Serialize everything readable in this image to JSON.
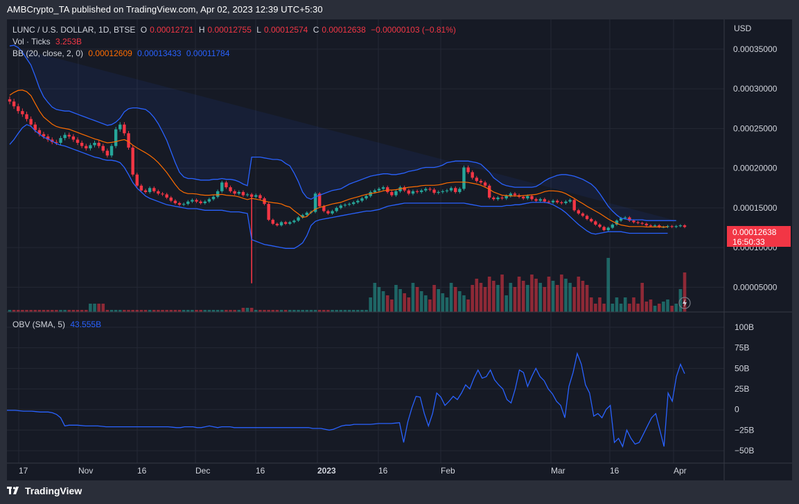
{
  "publisher_line": "AMBCrypto_TA published on TradingView.com, Apr 02, 2023 12:39 UTC+5:30",
  "legend": {
    "symbol": "LUNC / U.S. DOLLAR, 1D, BTSE",
    "o_label": "O",
    "o_val": "0.00012721",
    "h_label": "H",
    "h_val": "0.00012755",
    "l_label": "L",
    "l_val": "0.00012574",
    "c_label": "C",
    "c_val": "0.00012638",
    "change": "−0.00000103 (−0.81%)",
    "vol_label": "Vol · Ticks",
    "vol_val": "3.253B",
    "bb_label": "BB (20, close, 2, 0)",
    "bb_mid": "0.00012609",
    "bb_upper": "0.00013433",
    "bb_lower": "0.00011784",
    "obv_label": "OBV (SMA, 5)",
    "obv_val": "43.555B"
  },
  "currency": "USD",
  "price_tag": {
    "price": "0.00012638",
    "countdown": "16:50:33"
  },
  "footer_brand": "TradingView",
  "colors": {
    "up": "#26a69a",
    "down": "#f23645",
    "bb_mid": "#ff6d00",
    "bb_band": "#2962ff",
    "obv": "#2962ff"
  },
  "icons": {
    "brand": "tradingview-logo-icon",
    "replay": "lightning-icon"
  },
  "chart_data": [
    {
      "type": "candlestick",
      "title": "LUNC / U.S. DOLLAR, 1D, BTSE",
      "y_axis_ticks": [
        "0.00035000",
        "0.00030000",
        "0.00025000",
        "0.00020000",
        "0.00015000",
        "0.00010000",
        "0.00005000"
      ],
      "x_axis_ticks": [
        "17",
        "Nov",
        "16",
        "Dec",
        "16",
        "2023",
        "16",
        "Feb",
        "Mar",
        "16",
        "Apr"
      ],
      "ylim": [
        2.5e-05,
        0.00037
      ],
      "x_range_days": [
        -10,
        172
      ],
      "series": [
        {
          "name": "Price",
          "close": [
            0.000284,
            0.000278,
            0.000272,
            0.000268,
            0.000262,
            0.000255,
            0.000248,
            0.000243,
            0.00024,
            0.000236,
            0.000233,
            0.000232,
            0.000238,
            0.000242,
            0.00024,
            0.000236,
            0.000232,
            0.000228,
            0.000225,
            0.000229,
            0.000232,
            0.000228,
            0.000222,
            0.000216,
            0.000228,
            0.000249,
            0.000255,
            0.000244,
            0.000226,
            0.000192,
            0.000178,
            0.000172,
            0.00017,
            0.000175,
            0.000171,
            0.000168,
            0.000167,
            0.000163,
            0.000159,
            0.000156,
            0.000154,
            0.000155,
            0.000158,
            0.00016,
            0.000158,
            0.000156,
            0.000158,
            0.000161,
            0.000164,
            0.000171,
            0.000182,
            0.000176,
            0.000171,
            0.000168,
            0.00017,
            0.000166,
            0.000167,
            0.000164,
            0.000166,
            0.000162,
            0.000155,
            0.000135,
            0.00013,
            0.000128,
            0.000132,
            0.00013,
            0.000132,
            0.000134,
            0.000138,
            0.000141,
            0.000144,
            0.000145,
            0.000168,
            0.000152,
            0.000146,
            0.000143,
            0.000146,
            0.00015,
            0.000153,
            0.000154,
            0.000155,
            0.000157,
            0.000159,
            0.000162,
            0.000165,
            0.00017,
            0.000172,
            0.000174,
            0.000176,
            0.00017,
            0.000166,
            0.000171,
            0.000176,
            0.000172,
            0.000168,
            0.000171,
            0.00017,
            0.000172,
            0.000174,
            0.000173,
            0.000169,
            0.00017,
            0.000171,
            0.000172,
            0.000175,
            0.00017,
            0.000174,
            0.000201,
            0.000195,
            0.000188,
            0.000184,
            0.000182,
            0.000178,
            0.000163,
            0.000161,
            0.000163,
            0.000162,
            0.000165,
            0.000168,
            0.000166,
            0.000164,
            0.000162,
            0.000165,
            0.000161,
            0.000159,
            0.000161,
            0.000158,
            0.000157,
            0.000159,
            0.000157,
            0.000156,
            0.000158,
            0.00016,
            0.000147,
            0.000143,
            0.00014,
            0.000136,
            0.000133,
            0.000129,
            0.000126,
            0.000122,
            0.000125,
            0.000129,
            0.000134,
            0.000137,
            0.000138,
            0.000134,
            0.000132,
            0.000131,
            0.00013,
            0.000128,
            0.000127,
            0.000128,
            0.000126,
            0.000126,
            0.000127,
            0.000126,
            0.000127,
            0.000128,
            0.000126
          ],
          "open_offset_note": ""
        },
        {
          "name": "BB upper",
          "values": [
            0.000354,
            0.000355,
            0.000352,
            0.000346,
            0.000338,
            0.00033,
            0.000316,
            0.000301,
            0.00029,
            0.000283,
            0.000277,
            0.000274,
            0.000273,
            0.000272,
            0.000272,
            0.00027,
            0.000268,
            0.000266,
            0.000264,
            0.000262,
            0.00026,
            0.000258,
            0.000256,
            0.000254,
            0.000255,
            0.000258,
            0.000263,
            0.000271,
            0.000275,
            0.000276,
            0.000276,
            0.000275,
            0.000274,
            0.00027,
            0.000264,
            0.000256,
            0.000246,
            0.000235,
            0.000221,
            0.000207,
            0.000195,
            0.000189,
            0.000187,
            0.000187,
            0.000186,
            0.000185,
            0.000185,
            0.000185,
            0.000186,
            0.000186,
            0.000187,
            0.000186,
            0.000186,
            0.000185,
            0.000183,
            0.00018,
            0.000178,
            0.000214,
            0.000214,
            0.000214,
            0.000213,
            0.000212,
            0.000211,
            0.000211,
            0.00021,
            0.000206,
            0.000203,
            0.000194,
            0.000183,
            0.00017,
            0.000163,
            0.000161,
            0.000164,
            0.000166,
            0.000168,
            0.00017,
            0.000172,
            0.000173,
            0.000174,
            0.000177,
            0.00018,
            0.000182,
            0.000184,
            0.000186,
            0.000188,
            0.00019,
            0.000191,
            0.000192,
            0.000193,
            0.000193,
            0.000192,
            0.000192,
            0.000193,
            0.000194,
            0.000196,
            0.000197,
            0.000198,
            0.0002,
            0.000201,
            0.000201,
            0.000201,
            0.000202,
            0.000204,
            0.000207,
            0.000208,
            0.000209,
            0.000209,
            0.000209,
            0.000209,
            0.000208,
            0.000207,
            0.000205,
            0.0002,
            0.000195,
            0.000188,
            0.000184,
            0.00018,
            0.000178,
            0.000177,
            0.000176,
            0.000176,
            0.000176,
            0.000176,
            0.000176,
            0.000177,
            0.00018,
            0.000184,
            0.000187,
            0.000189,
            0.000191,
            0.000192,
            0.000192,
            0.000191,
            0.00019,
            0.000188,
            0.000186,
            0.000183,
            0.00018,
            0.000175,
            0.000168,
            0.00016,
            0.000152,
            0.000146,
            0.000141,
            0.000137,
            0.000136,
            0.000135,
            0.000135,
            0.000135,
            0.000135,
            0.000134,
            0.000134,
            0.000134,
            0.000134,
            0.000134,
            0.000134,
            0.000134,
            0.000134
          ]
        },
        {
          "name": "BB lower",
          "values": [
            0.00023,
            0.000236,
            0.000244,
            0.000251,
            0.000255,
            0.000253,
            0.000247,
            0.000243,
            0.000239,
            0.000237,
            0.000234,
            0.000231,
            0.000229,
            0.000228,
            0.000226,
            0.000224,
            0.000222,
            0.00022,
            0.000218,
            0.000216,
            0.000214,
            0.000213,
            0.000211,
            0.00021,
            0.00021,
            0.000209,
            0.000207,
            0.000201,
            0.000192,
            0.000182,
            0.000175,
            0.00017,
            0.000165,
            0.000162,
            0.00016,
            0.000158,
            0.000156,
            0.000154,
            0.000153,
            0.000152,
            0.000151,
            0.00015,
            0.000149,
            0.000149,
            0.000149,
            0.000148,
            0.000147,
            0.000147,
            0.000147,
            0.000147,
            0.000147,
            0.000146,
            0.000145,
            0.000145,
            0.000145,
            0.000144,
            0.000143,
            0.00011,
            0.000108,
            0.000106,
            0.000104,
            0.000103,
            0.000102,
            0.000101,
            0.0001,
            9.9e-05,
            9.9e-05,
            9.9e-05,
            0.000102,
            0.000106,
            0.000115,
            0.000128,
            0.000133,
            0.000135,
            0.000136,
            0.000137,
            0.000138,
            0.000139,
            0.00014,
            0.000141,
            0.000142,
            0.000143,
            0.000144,
            0.000145,
            0.000146,
            0.000146,
            0.000147,
            0.000148,
            0.00015,
            0.000152,
            0.000153,
            0.000154,
            0.000155,
            0.000156,
            0.000156,
            0.000156,
            0.000156,
            0.000156,
            0.000156,
            0.000156,
            0.000156,
            0.000156,
            0.000156,
            0.000156,
            0.000156,
            0.000156,
            0.000156,
            0.000156,
            0.000155,
            0.000154,
            0.000153,
            0.000152,
            0.000152,
            0.000152,
            0.000152,
            0.000152,
            0.000152,
            0.000153,
            0.000153,
            0.000154,
            0.000154,
            0.000155,
            0.000156,
            0.000157,
            0.000157,
            0.000157,
            0.000157,
            0.000156,
            0.000154,
            0.000151,
            0.000148,
            0.000144,
            0.000139,
            0.000134,
            0.000129,
            0.000125,
            0.000121,
            0.000118,
            0.000117,
            0.000118,
            0.000119,
            0.00012,
            0.00012,
            0.00012,
            0.00012,
            0.000119,
            0.000118,
            0.000118,
            0.000118,
            0.000118,
            0.000118,
            0.000118,
            0.000118,
            0.000118,
            0.000118,
            0.000118
          ]
        }
      ]
    },
    {
      "type": "bar",
      "title": "Vol · Ticks",
      "series": [
        {
          "name": "Volume",
          "values": [
            1,
            1,
            1,
            1,
            1,
            1,
            1,
            1,
            1,
            1,
            1,
            1,
            1,
            1,
            1,
            1,
            1,
            1,
            1,
            1,
            1,
            1,
            1,
            1,
            1,
            1,
            1,
            1,
            1,
            1,
            1,
            1,
            1,
            1,
            1,
            1,
            1,
            1,
            1,
            1,
            1,
            1,
            1,
            1,
            1,
            1,
            1,
            1,
            1,
            1,
            1,
            1,
            1,
            1,
            1,
            1,
            1,
            1,
            1,
            1,
            1,
            1,
            1,
            1,
            1,
            1,
            1,
            1,
            1,
            1,
            1,
            1,
            1,
            1,
            1,
            1,
            1,
            1,
            1,
            1,
            1,
            1,
            1,
            1,
            1,
            1,
            1,
            1,
            1,
            1,
            1,
            1,
            1,
            1,
            1,
            1,
            1,
            1,
            1,
            1,
            1,
            1,
            1,
            1,
            1,
            1,
            1,
            1,
            1,
            1,
            1,
            1,
            1,
            1,
            1,
            1,
            1,
            1,
            1,
            1,
            1,
            1,
            1,
            1,
            1,
            1,
            1,
            1,
            1,
            1,
            1,
            1,
            1,
            1,
            1,
            1,
            1,
            1,
            1,
            1,
            1,
            1,
            1,
            1,
            1,
            1,
            1,
            1,
            1,
            1,
            1,
            1,
            1,
            1,
            1,
            1,
            1,
            1,
            1,
            1
          ]
        }
      ]
    },
    {
      "type": "line",
      "title": "OBV (SMA, 5)",
      "y_axis_ticks": [
        "100B",
        "75B",
        "50B",
        "25B",
        "0",
        "−25B",
        "−50B"
      ],
      "ylim": [
        -55,
        105
      ],
      "series": [
        {
          "name": "OBV (SMA, 5)",
          "values": [
            -1,
            -1,
            -1,
            -1.5,
            -2,
            -2,
            -2,
            -2.5,
            -3,
            -3,
            -3,
            -4,
            -6,
            -10,
            -20,
            -19,
            -19,
            -19,
            -19.5,
            -20,
            -20,
            -20,
            -20,
            -20.5,
            -21,
            -21,
            -21,
            -21,
            -21,
            -21,
            -21,
            -21,
            -21,
            -21,
            -21,
            -21,
            -21,
            -21,
            -21,
            -21,
            -21.5,
            -22,
            -22,
            -21,
            -21,
            -21,
            -22,
            -22,
            -21,
            -20,
            -21,
            -22,
            -21,
            -21,
            -21,
            -22,
            -22,
            -22,
            -22,
            -22,
            -22,
            -22,
            -22,
            -22,
            -22,
            -22,
            -22,
            -22,
            -22,
            -22,
            -22,
            -22,
            -22,
            -22,
            -23,
            -23,
            -23,
            -24,
            -25,
            -24,
            -22,
            -20,
            -19,
            -19,
            -18,
            -18,
            -18,
            -18,
            -18,
            -17.5,
            -17,
            -17,
            -17,
            -17,
            -16.5,
            -16,
            -40,
            -15,
            2,
            16,
            15,
            -5,
            -20,
            -5,
            20,
            15,
            5,
            10,
            16,
            12,
            20,
            30,
            25,
            38,
            48,
            38,
            40,
            48,
            36,
            30,
            25,
            12,
            8,
            25,
            48,
            45,
            28,
            40,
            50,
            40,
            35,
            25,
            19,
            10,
            5,
            -10,
            28,
            45,
            68,
            55,
            30,
            20,
            -8,
            -5,
            -10,
            0,
            5,
            -40,
            -35,
            -45,
            -25,
            -35,
            -42,
            -40,
            -30,
            -20,
            -10,
            -5,
            -25,
            -45,
            20,
            10,
            40,
            55,
            43.555
          ]
        }
      ]
    }
  ]
}
